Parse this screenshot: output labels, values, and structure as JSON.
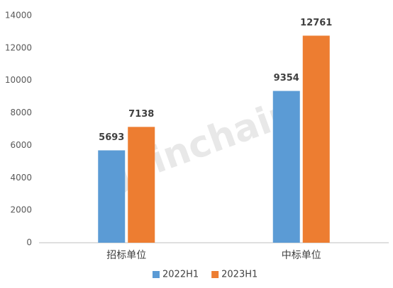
{
  "chart_data": {
    "type": "bar",
    "watermark": "Joinchain",
    "categories": [
      "招标单位",
      "中标单位"
    ],
    "series": [
      {
        "name": "2022H1",
        "color": "#5b9bd5",
        "values": [
          5693,
          9354
        ]
      },
      {
        "name": "2023H1",
        "color": "#ed7d31",
        "values": [
          7138,
          12761
        ]
      }
    ],
    "ylim": [
      0,
      14000
    ],
    "yticks": [
      0,
      2000,
      4000,
      6000,
      8000,
      10000,
      12000,
      14000
    ],
    "grid": false,
    "legend": "bottom"
  }
}
